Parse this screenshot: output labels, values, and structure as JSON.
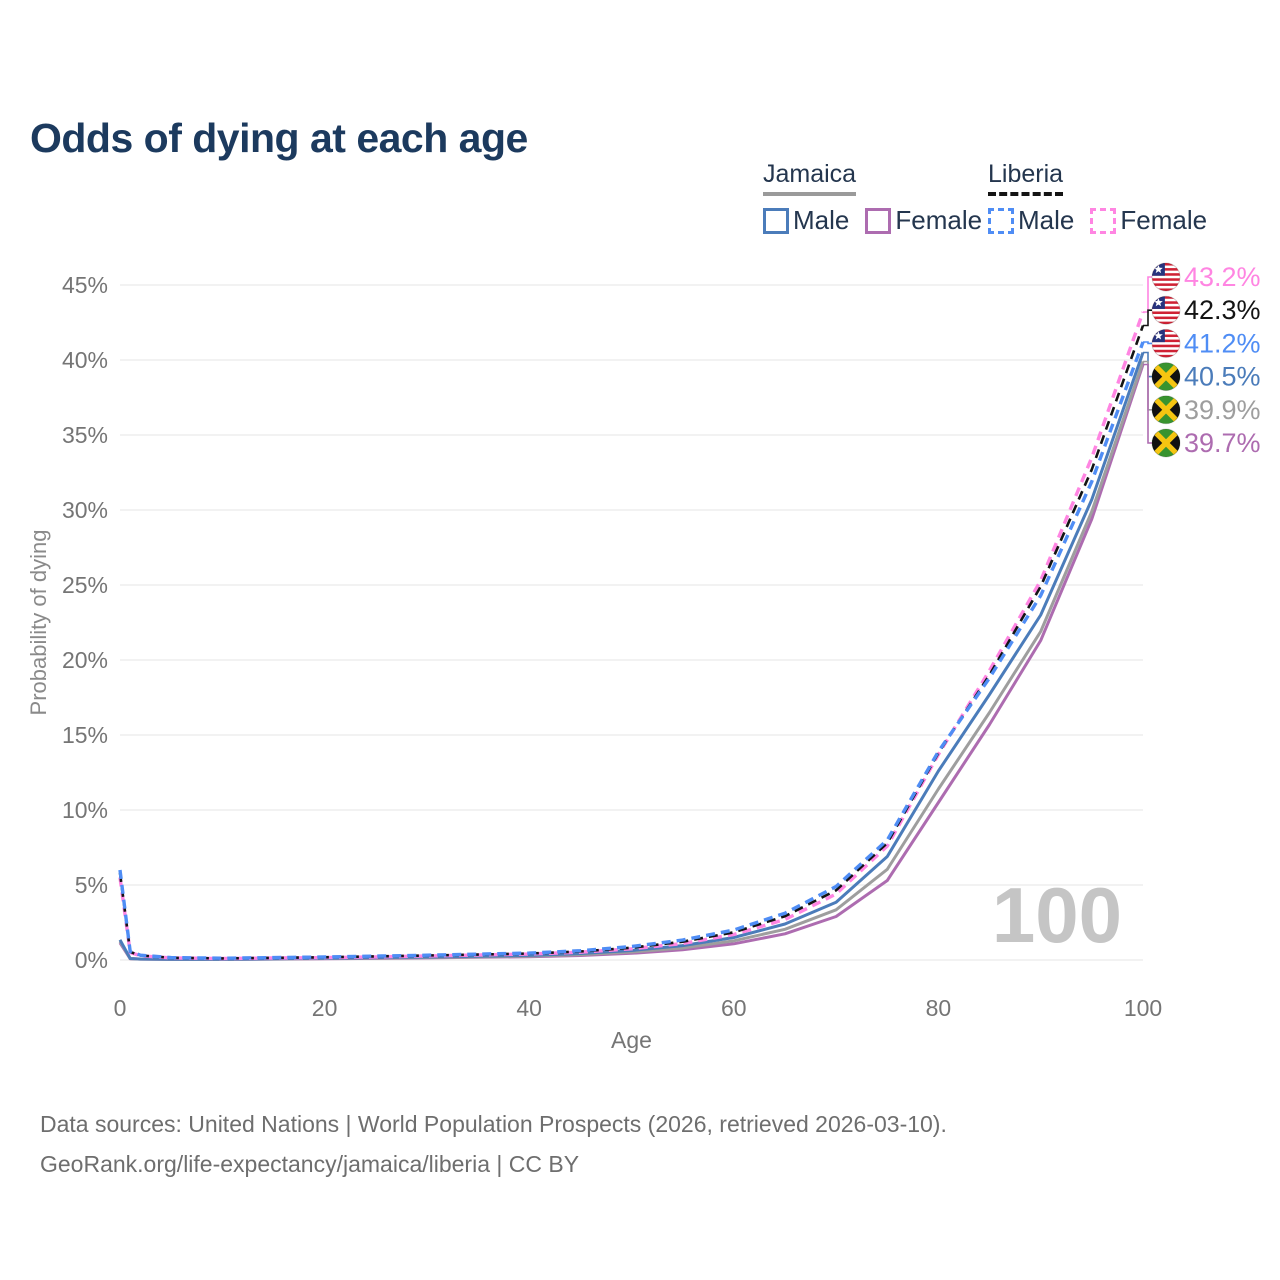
{
  "title": "Odds of dying at each age",
  "legend": {
    "groups": [
      {
        "label": "Jamaica",
        "line_style": "solid",
        "underline_color": "#9a9a9a",
        "items": [
          {
            "label": "Male",
            "color": "#4b7cba",
            "dash": false
          },
          {
            "label": "Female",
            "color": "#ad6cb0",
            "dash": false
          }
        ]
      },
      {
        "label": "Liberia",
        "line_style": "dashed",
        "underline_color": "#141414",
        "items": [
          {
            "label": "Male",
            "color": "#4f8df5",
            "dash": true
          },
          {
            "label": "Female",
            "color": "#ff85e2",
            "dash": true
          }
        ]
      }
    ]
  },
  "footer": {
    "line1": "Data sources: United Nations | World Population Prospects (2026, retrieved 2026-03-10).",
    "line2": "GeoRank.org/life-expectancy/jamaica/liberia | CC BY"
  },
  "chart_data": {
    "type": "line",
    "title": "Odds of dying at each age",
    "xlabel": "Age",
    "ylabel": "Probability of dying",
    "xlim": [
      0,
      100
    ],
    "ylim_pct": [
      0,
      45
    ],
    "x_ticks": [
      0,
      20,
      40,
      60,
      80,
      100
    ],
    "y_ticks_pct": [
      0,
      5,
      10,
      15,
      20,
      25,
      30,
      35,
      40,
      45
    ],
    "grid": "horizontal",
    "legend_position": "top-right",
    "watermark": "100",
    "axis_text_color": "#757575",
    "grid_color": "#ebebeb",
    "watermark_color": "#c5c5c5",
    "ages": [
      0,
      1,
      2,
      5,
      10,
      15,
      20,
      25,
      30,
      35,
      40,
      45,
      50,
      55,
      60,
      65,
      70,
      75,
      80,
      85,
      90,
      95,
      100
    ],
    "series": [
      {
        "name": "Jamaica Female",
        "country": "Jamaica",
        "sex": "female",
        "flag": "jamaica",
        "color": "#ad6cb0",
        "dashed": false,
        "end_label": "39.7%",
        "values_pct": [
          1.15,
          0.08,
          0.06,
          0.04,
          0.04,
          0.06,
          0.08,
          0.11,
          0.14,
          0.18,
          0.22,
          0.3,
          0.45,
          0.68,
          1.08,
          1.75,
          2.9,
          5.3,
          10.5,
          15.7,
          21.3,
          29.4,
          39.7
        ]
      },
      {
        "name": "Jamaica",
        "country": "Jamaica",
        "sex": "both",
        "flag": "jamaica",
        "color": "#9e9e9e",
        "dashed": false,
        "end_label": "39.9%",
        "values_pct": [
          1.25,
          0.09,
          0.06,
          0.05,
          0.04,
          0.07,
          0.1,
          0.13,
          0.17,
          0.21,
          0.26,
          0.36,
          0.53,
          0.8,
          1.28,
          2.05,
          3.35,
          6.05,
          11.4,
          16.5,
          21.9,
          29.9,
          39.9
        ]
      },
      {
        "name": "Jamaica Male",
        "country": "Jamaica",
        "sex": "male",
        "flag": "jamaica",
        "color": "#4b7cba",
        "dashed": false,
        "end_label": "40.5%",
        "values_pct": [
          1.35,
          0.1,
          0.07,
          0.05,
          0.05,
          0.08,
          0.12,
          0.16,
          0.2,
          0.25,
          0.31,
          0.43,
          0.63,
          0.96,
          1.5,
          2.4,
          3.85,
          6.9,
          12.6,
          17.7,
          23.0,
          30.7,
          40.5
        ]
      },
      {
        "name": "Liberia Female",
        "country": "Liberia",
        "sex": "female",
        "flag": "liberia",
        "color": "#ff85e2",
        "dashed": true,
        "end_label": "43.2%",
        "values_pct": [
          5.5,
          0.5,
          0.28,
          0.14,
          0.1,
          0.13,
          0.16,
          0.21,
          0.27,
          0.33,
          0.4,
          0.52,
          0.75,
          1.1,
          1.7,
          2.7,
          4.4,
          7.6,
          13.7,
          19.3,
          25.3,
          33.5,
          43.2
        ]
      },
      {
        "name": "Liberia",
        "country": "Liberia",
        "sex": "both",
        "flag": "liberia",
        "color": "#141414",
        "dashed": true,
        "end_label": "42.3%",
        "values_pct": [
          5.8,
          0.53,
          0.3,
          0.15,
          0.11,
          0.14,
          0.18,
          0.24,
          0.3,
          0.36,
          0.43,
          0.57,
          0.82,
          1.22,
          1.85,
          2.92,
          4.65,
          7.8,
          13.8,
          19.0,
          24.9,
          32.7,
          42.3
        ]
      },
      {
        "name": "Liberia Male",
        "country": "Liberia",
        "sex": "male",
        "flag": "liberia",
        "color": "#4f8df5",
        "dashed": true,
        "end_label": "41.2%",
        "values_pct": [
          6.0,
          0.56,
          0.32,
          0.16,
          0.12,
          0.16,
          0.2,
          0.26,
          0.32,
          0.39,
          0.46,
          0.62,
          0.9,
          1.33,
          2.0,
          3.12,
          4.9,
          8.0,
          13.9,
          18.8,
          24.3,
          31.9,
          41.2
        ]
      }
    ]
  }
}
